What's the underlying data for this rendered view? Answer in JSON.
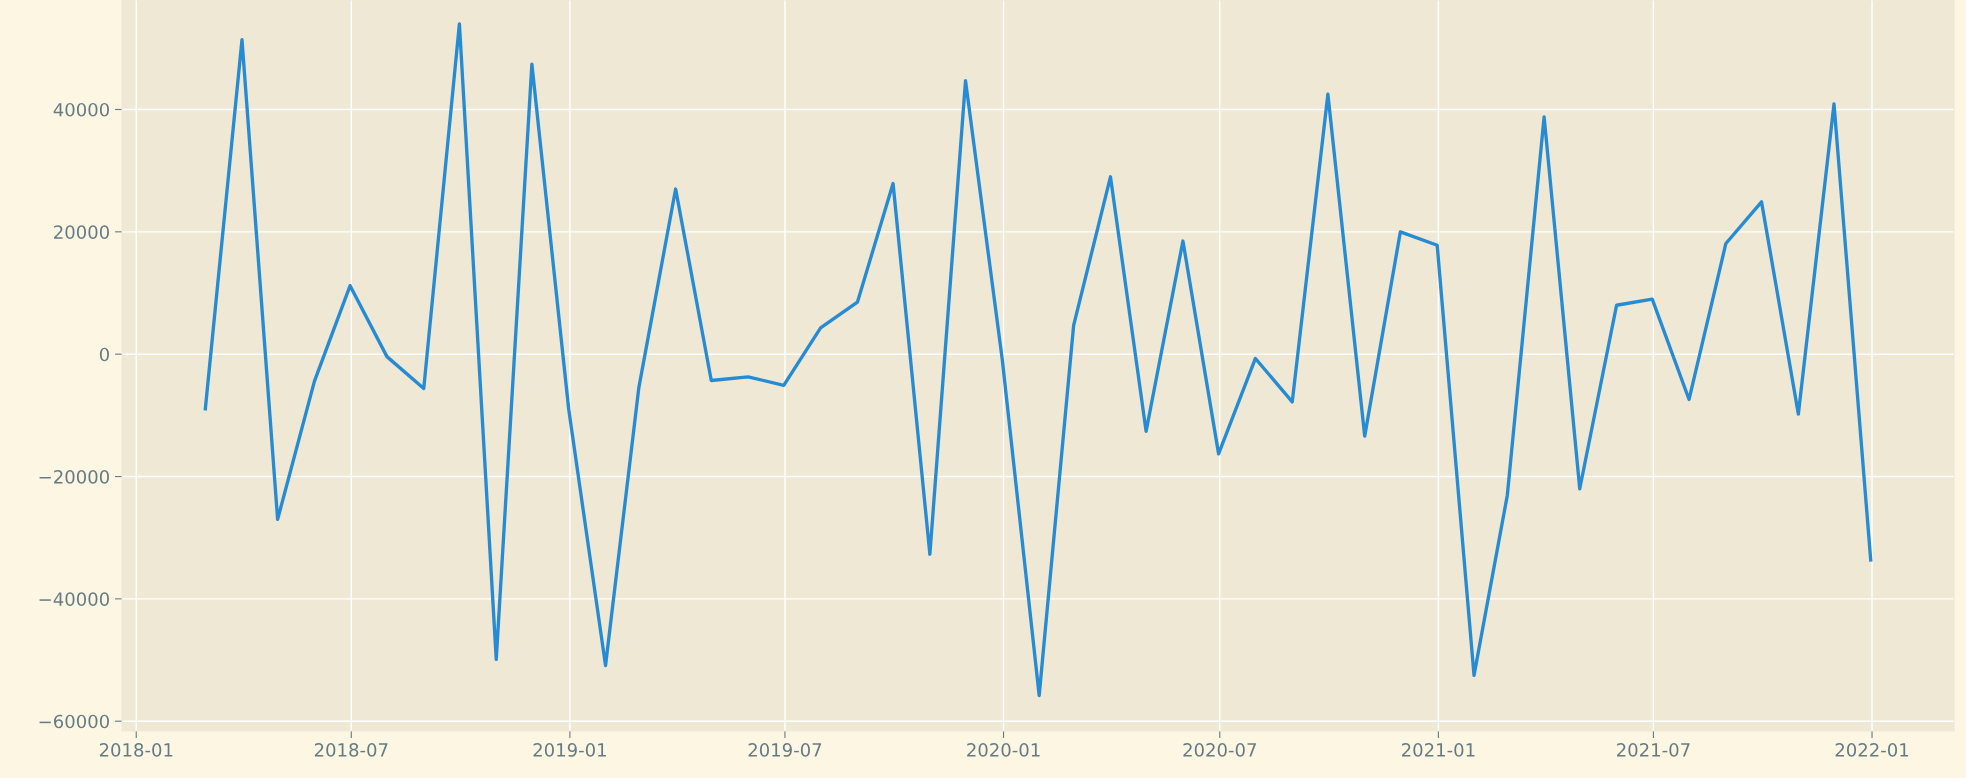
{
  "chart_data": {
    "type": "line",
    "x": [
      "2018-02-28",
      "2018-03-31",
      "2018-04-30",
      "2018-05-31",
      "2018-06-30",
      "2018-07-31",
      "2018-08-31",
      "2018-09-30",
      "2018-10-31",
      "2018-11-30",
      "2018-12-31",
      "2019-01-31",
      "2019-02-28",
      "2019-03-31",
      "2019-04-30",
      "2019-05-31",
      "2019-06-30",
      "2019-07-31",
      "2019-08-31",
      "2019-09-30",
      "2019-10-31",
      "2019-11-30",
      "2019-12-31",
      "2020-01-31",
      "2020-02-29",
      "2020-03-31",
      "2020-04-30",
      "2020-05-31",
      "2020-06-30",
      "2020-07-31",
      "2020-08-31",
      "2020-09-30",
      "2020-10-31",
      "2020-11-30",
      "2020-12-31",
      "2021-01-31",
      "2021-02-28",
      "2021-03-31",
      "2021-04-30",
      "2021-05-31",
      "2021-06-30",
      "2021-07-31",
      "2021-08-31",
      "2021-09-30",
      "2021-10-31",
      "2021-11-30",
      "2021-12-31"
    ],
    "series": [
      {
        "color": "#268bd2",
        "values": [
          -9200,
          51400,
          -27000,
          -4400,
          11200,
          -400,
          -5600,
          54000,
          -49900,
          47400,
          -9000,
          -50900,
          -5500,
          27000,
          -4300,
          -3700,
          -5100,
          4300,
          8500,
          27900,
          -32700,
          44700,
          -1000,
          -55800,
          4700,
          29000,
          -12600,
          18500,
          -16300,
          -700,
          -7800,
          42500,
          -13400,
          20000,
          17800,
          -52500,
          -23100,
          38800,
          -22000,
          8000,
          9000,
          -7400,
          18100,
          24900,
          -9800,
          40900,
          -33900
        ]
      }
    ],
    "xlim": [
      "2017-12-20",
      "2022-03-11"
    ],
    "xticks": [
      "2018-01",
      "2018-07",
      "2019-01",
      "2019-07",
      "2020-01",
      "2020-07",
      "2021-01",
      "2021-07",
      "2022-01"
    ],
    "ylim": [
      -61600,
      57900
    ],
    "yticks": [
      {
        "value": -60000,
        "label": "−60000"
      },
      {
        "value": -40000,
        "label": "−40000"
      },
      {
        "value": -20000,
        "label": "−20000"
      },
      0,
      20000,
      40000
    ],
    "grid": true,
    "line_style": "solid"
  }
}
